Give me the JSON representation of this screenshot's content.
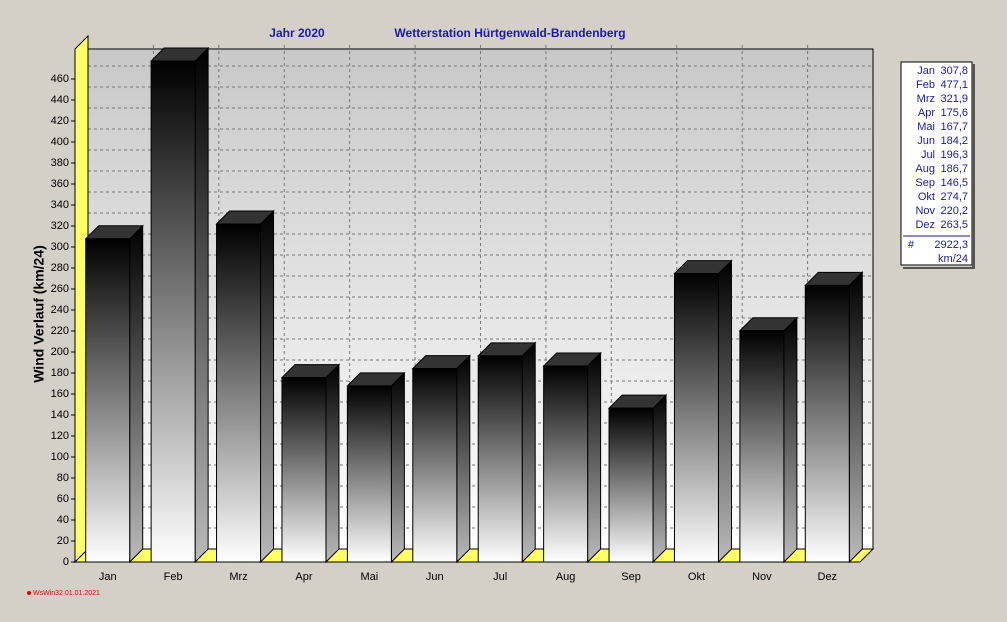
{
  "chart_data": {
    "type": "bar3d",
    "title": "Jahr  2020",
    "subtitle": "Wetterstation Hürtgenwald-Brandenberg",
    "y_label": "Wind Verlauf  (km/24)",
    "footer": "WsWin32  01.01.2021",
    "categories": [
      "Jan",
      "Feb",
      "Mrz",
      "Apr",
      "Mai",
      "Jun",
      "Jul",
      "Aug",
      "Sep",
      "Okt",
      "Nov",
      "Dez"
    ],
    "values": [
      307.8,
      477.1,
      321.9,
      175.6,
      167.7,
      184.2,
      196.3,
      186.7,
      146.5,
      274.7,
      220.2,
      263.5
    ],
    "value_labels": [
      "307,8",
      "477,1",
      "321,9",
      "175,6",
      "167,7",
      "184,2",
      "196,3",
      "186,7",
      "146,5",
      "274,7",
      "220,2",
      "263,5"
    ],
    "total": {
      "value": 2922.3,
      "label": "2922,3"
    },
    "total_symbol": "#",
    "total_unit": "km/24",
    "ylim": [
      0,
      480
    ],
    "yticks": [
      0,
      20,
      40,
      60,
      80,
      100,
      120,
      140,
      160,
      180,
      200,
      220,
      240,
      260,
      280,
      300,
      320,
      340,
      360,
      380,
      400,
      420,
      440,
      460
    ],
    "grid": true,
    "wall_color": "#ffff66"
  }
}
